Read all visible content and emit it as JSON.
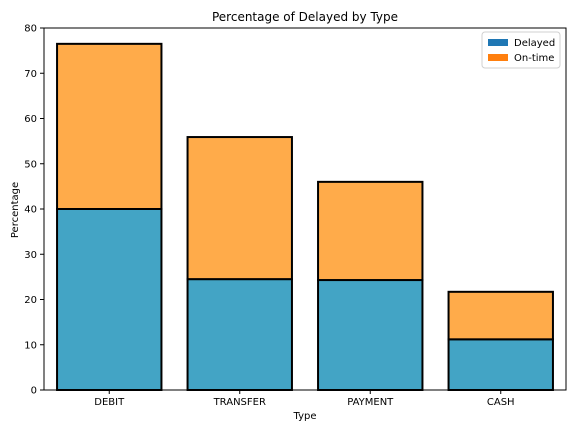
{
  "chart_data": {
    "type": "bar",
    "stacked": true,
    "title": "Percentage of Delayed by Type",
    "xlabel": "Type",
    "ylabel": "Percentage",
    "categories": [
      "DEBIT",
      "TRANSFER",
      "PAYMENT",
      "CASH"
    ],
    "series": [
      {
        "name": "Delayed",
        "values": [
          40.0,
          24.5,
          24.3,
          11.2
        ],
        "color": "#43a4c5",
        "legend_color": "#1f77b4"
      },
      {
        "name": "On-time",
        "values": [
          36.5,
          31.4,
          21.7,
          10.5
        ],
        "color": "#ffab4a",
        "legend_color": "#ff7f0e"
      }
    ],
    "ylim": [
      0,
      80
    ],
    "yticks": [
      0,
      10,
      20,
      30,
      40,
      50,
      60,
      70,
      80
    ],
    "grid": false,
    "legend_position": "top-right"
  }
}
